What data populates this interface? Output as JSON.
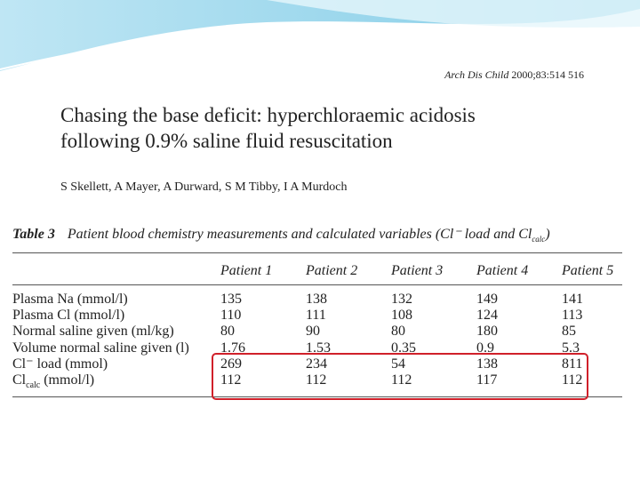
{
  "header": {
    "journal": "Arch Dis Child",
    "citation": "2000;83:514 516"
  },
  "title": [
    "Chasing the base deficit: hyperchloraemic acidosis",
    "following 0.9% saline fluid resuscitation"
  ],
  "authors": "S Skellett, A Mayer, A Durward, S M Tibby, I A Murdoch",
  "table": {
    "caption": {
      "label": "Table 3",
      "text": "Patient blood chemistry measurements and calculated variables (Cl⁻ load and Cl",
      "sub": "calc",
      "end": ")"
    },
    "columns": [
      "Patient 1",
      "Patient 2",
      "Patient 3",
      "Patient 4",
      "Patient 5"
    ],
    "rows": [
      {
        "label": "Plasma Na (mmol/l)",
        "values": [
          "135",
          "138",
          "132",
          "149",
          "141"
        ]
      },
      {
        "label": "Plasma Cl (mmol/l)",
        "values": [
          "110",
          "111",
          "108",
          "124",
          "113"
        ]
      },
      {
        "label": "Normal saline given (ml/kg)",
        "values": [
          "80",
          "90",
          "80",
          "180",
          "85"
        ]
      },
      {
        "label": "Volume normal saline given (l)",
        "values": [
          "1.76",
          "1.53",
          "0.35",
          "0.9",
          "5.3"
        ]
      },
      {
        "label": "Cl⁻ load (mmol)",
        "values": [
          "269",
          "234",
          "54",
          "138",
          "811"
        ]
      },
      {
        "label": "Cl",
        "sub": "calc",
        "unit": " (mmol/l)",
        "values": [
          "112",
          "112",
          "112",
          "117",
          "112"
        ]
      }
    ]
  }
}
